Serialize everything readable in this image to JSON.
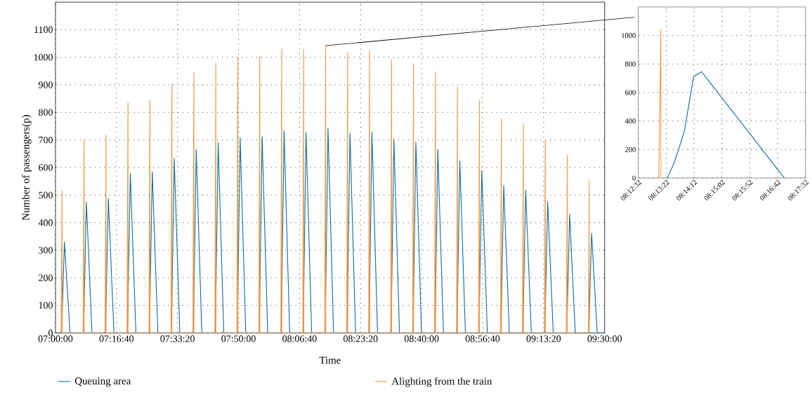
{
  "chart_data": [
    {
      "type": "line",
      "xlabel": "Time",
      "ylabel": "Number of passengers(p)",
      "xlim": [
        7.0,
        9.5
      ],
      "ylim": [
        0,
        1200
      ],
      "xticks": [
        {
          "value": 7.0,
          "label": "07:00:00"
        },
        {
          "value": 7.277778,
          "label": "07:16:40"
        },
        {
          "value": 7.555556,
          "label": "07:33:20"
        },
        {
          "value": 7.833333,
          "label": "07:50:00"
        },
        {
          "value": 8.111111,
          "label": "08:06:40"
        },
        {
          "value": 8.388889,
          "label": "08:23:20"
        },
        {
          "value": 8.666667,
          "label": "08:40:00"
        },
        {
          "value": 8.944444,
          "label": "08:56:40"
        },
        {
          "value": 9.222222,
          "label": "09:13:20"
        },
        {
          "value": 9.5,
          "label": "09:30:00"
        }
      ],
      "yticks": [
        0,
        100,
        200,
        300,
        400,
        500,
        600,
        700,
        800,
        900,
        1000,
        1100
      ],
      "grid": true,
      "legend": "bottom",
      "series": [
        {
          "name": "Queuing area",
          "color": "#0e6b9c",
          "x": [
            7.0,
            7.0278,
            7.0406,
            7.0661,
            7.1278,
            7.1406,
            7.1661,
            7.2278,
            7.2406,
            7.2661,
            7.3278,
            7.3406,
            7.3661,
            7.4278,
            7.4406,
            7.4661,
            7.5278,
            7.5406,
            7.5661,
            7.6278,
            7.6406,
            7.6661,
            7.7278,
            7.7406,
            7.7661,
            7.8278,
            7.8406,
            7.8661,
            7.9278,
            7.9406,
            7.9661,
            8.0278,
            8.0406,
            8.0661,
            8.1278,
            8.1406,
            8.1661,
            8.2278,
            8.2406,
            8.2661,
            8.3278,
            8.3406,
            8.3661,
            8.4278,
            8.4406,
            8.4661,
            8.5278,
            8.5406,
            8.5661,
            8.6278,
            8.6406,
            8.6661,
            8.7278,
            8.7406,
            8.7661,
            8.8278,
            8.8406,
            8.8661,
            8.9278,
            8.9406,
            8.9661,
            9.0278,
            9.0406,
            9.0661,
            9.1278,
            9.1406,
            9.1661,
            9.2278,
            9.2406,
            9.2661,
            9.3278,
            9.3406,
            9.3661,
            9.4278,
            9.4406,
            9.4661,
            9.5
          ],
          "values": [
            0,
            0,
            330,
            0,
            0,
            475,
            0,
            0,
            488,
            0,
            0,
            578,
            0,
            0,
            585,
            0,
            0,
            632,
            0,
            0,
            665,
            0,
            0,
            690,
            0,
            0,
            708,
            0,
            0,
            712,
            0,
            0,
            733,
            0,
            0,
            728,
            0,
            0,
            743,
            0,
            0,
            725,
            0,
            0,
            728,
            0,
            0,
            703,
            0,
            0,
            692,
            0,
            0,
            666,
            0,
            0,
            624,
            0,
            0,
            588,
            0,
            0,
            535,
            0,
            0,
            518,
            0,
            0,
            476,
            0,
            0,
            430,
            0,
            0,
            362,
            0,
            0
          ]
        },
        {
          "name": "Alighting from the train",
          "color": "#f5953f",
          "x": [
            7.0258,
            7.03,
            7.03,
            7.1258,
            7.13,
            7.13,
            7.2258,
            7.23,
            7.23,
            7.3258,
            7.33,
            7.33,
            7.4258,
            7.43,
            7.43,
            7.5258,
            7.53,
            7.53,
            7.6258,
            7.63,
            7.63,
            7.7258,
            7.73,
            7.73,
            7.8258,
            7.83,
            7.83,
            7.9258,
            7.93,
            7.93,
            8.0258,
            8.03,
            8.03,
            8.1258,
            8.13,
            8.13,
            8.2258,
            8.23,
            8.23,
            8.3258,
            8.33,
            8.33,
            8.4258,
            8.43,
            8.43,
            8.5258,
            8.53,
            8.53,
            8.6258,
            8.63,
            8.63,
            8.7258,
            8.73,
            8.73,
            8.8258,
            8.83,
            8.83,
            8.9258,
            8.93,
            8.93,
            9.0258,
            9.03,
            9.03,
            9.1258,
            9.13,
            9.13,
            9.2258,
            9.23,
            9.23,
            9.3258,
            9.33,
            9.33,
            9.4258,
            9.43,
            9.43
          ],
          "values": [
            0,
            515,
            0,
            0,
            700,
            0,
            0,
            718,
            0,
            0,
            835,
            0,
            0,
            843,
            0,
            0,
            905,
            0,
            0,
            945,
            0,
            0,
            978,
            0,
            0,
            998,
            0,
            0,
            1005,
            0,
            0,
            1030,
            0,
            0,
            1027,
            0,
            0,
            1042,
            0,
            0,
            1018,
            0,
            0,
            1024,
            0,
            0,
            991,
            0,
            0,
            977,
            0,
            0,
            946,
            0,
            0,
            891,
            0,
            0,
            845,
            0,
            0,
            778,
            0,
            0,
            757,
            0,
            0,
            700,
            0,
            0,
            645,
            0,
            0,
            554,
            0
          ]
        }
      ]
    },
    {
      "type": "line",
      "xlim": [
        8.208889,
        8.292222
      ],
      "ylim": [
        0,
        1200
      ],
      "xticks": [
        {
          "value": 8.208889,
          "label": "08:12:32"
        },
        {
          "value": 8.222778,
          "label": "08:13:22"
        },
        {
          "value": 8.236667,
          "label": "08:14:12"
        },
        {
          "value": 8.250556,
          "label": "08:15:02"
        },
        {
          "value": 8.264444,
          "label": "08:15:52"
        },
        {
          "value": 8.278333,
          "label": "08:16:42"
        },
        {
          "value": 8.292222,
          "label": "08:17:32"
        }
      ],
      "yticks": [
        0,
        200,
        400,
        600,
        800,
        1000
      ],
      "grid": true,
      "series": [
        {
          "color": "#0e6b9c",
          "x": [
            8.22333,
            8.22664,
            8.22897,
            8.23189,
            8.23644,
            8.24039,
            8.28167
          ],
          "values": [
            0,
            103,
            201,
            332,
            712,
            746,
            0
          ]
        },
        {
          "color": "#f5953f",
          "x": [
            8.21906,
            8.22014,
            8.22014
          ],
          "values": [
            0,
            1044,
            0
          ]
        }
      ]
    }
  ]
}
